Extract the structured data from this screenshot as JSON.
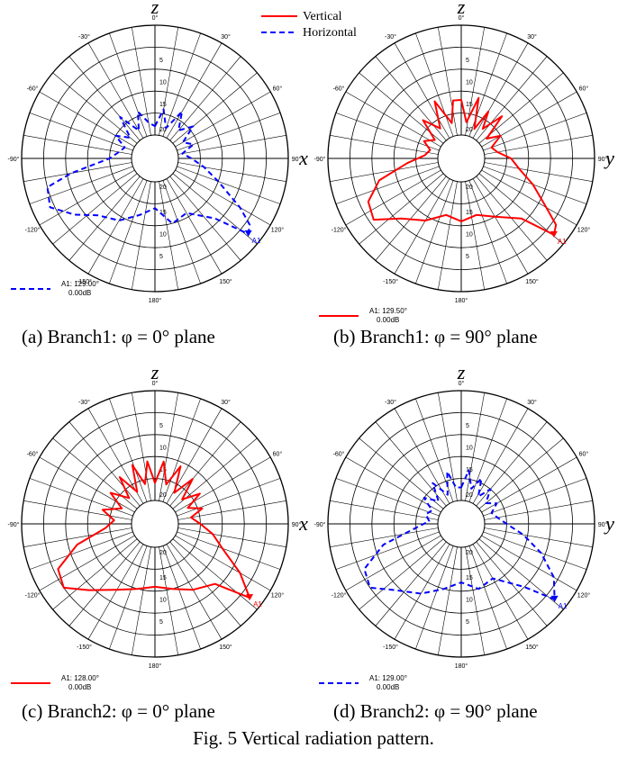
{
  "legend": {
    "vertical": {
      "label": "Vertical",
      "color": "#ff0000"
    },
    "horizontal": {
      "label": "Horizontal",
      "color": "#0000ff"
    }
  },
  "figure_caption": "Fig. 5 Vertical radiation pattern.",
  "chart_data": [
    {
      "type": "polar",
      "top_label": "z",
      "side_label": "x",
      "caption": "(a) Branch1: φ = 0° plane",
      "angle_ticks": [
        "0°",
        "30°",
        "60°",
        "90°",
        "120°",
        "150°",
        "180°",
        "-150°",
        "-120°",
        "-90°",
        "-60°",
        "-30°"
      ],
      "radial_ticks": [
        "20",
        "15",
        "10",
        "5"
      ],
      "series": [
        {
          "style": "dashed",
          "color": "#0000ff",
          "angles": [
            0,
            10,
            20,
            30,
            40,
            50,
            60,
            70,
            80,
            90,
            100,
            110,
            120,
            125,
            129,
            135,
            150,
            165,
            180,
            195,
            210,
            225,
            235,
            245,
            255,
            260,
            270,
            280,
            290,
            300,
            310,
            320,
            330,
            340,
            350
          ],
          "values": [
            2,
            6,
            2,
            7,
            3,
            6,
            2,
            4,
            1,
            3,
            6,
            10,
            17,
            21,
            22,
            14,
            9,
            10,
            6,
            8,
            11,
            13,
            17,
            21,
            20,
            14,
            5,
            3,
            2,
            5,
            2,
            7,
            2,
            6,
            3
          ]
        }
      ],
      "marker": {
        "label": "A1",
        "angle": 129,
        "readout": "A1:  129.00°",
        "level": "0.00dB"
      }
    },
    {
      "type": "polar",
      "top_label": "z",
      "side_label": "y",
      "caption": "(b) Branch1: φ = 90° plane",
      "angle_ticks": [
        "0°",
        "30°",
        "60°",
        "90°",
        "120°",
        "150°",
        "180°",
        "-150°",
        "-120°",
        "-90°",
        "-60°",
        "-30°"
      ],
      "radial_ticks": [
        "20",
        "15",
        "10",
        "5"
      ],
      "series": [
        {
          "style": "solid",
          "color": "#ff0000",
          "angles": [
            0,
            8,
            16,
            24,
            30,
            36,
            44,
            52,
            60,
            70,
            80,
            90,
            100,
            110,
            120,
            125,
            129.5,
            135,
            150,
            165,
            180,
            195,
            210,
            225,
            235,
            245,
            255,
            265,
            275,
            285,
            295,
            305,
            315,
            325,
            335,
            345,
            352
          ],
          "values": [
            8,
            3,
            9,
            2,
            7,
            3,
            8,
            2,
            5,
            2,
            3,
            6,
            8,
            12,
            17,
            21,
            22,
            14,
            10,
            8,
            9,
            8,
            11,
            14,
            19,
            18,
            14,
            7,
            3,
            2,
            4,
            2,
            7,
            3,
            9,
            3,
            8
          ]
        }
      ],
      "marker": {
        "label": "A1",
        "angle": 129.5,
        "readout": "A1:  129.50°",
        "level": "0.00dB"
      }
    },
    {
      "type": "polar",
      "top_label": "z",
      "side_label": "x",
      "caption": "(c) Branch2: φ = 0° plane",
      "angle_ticks": [
        "0°",
        "30°",
        "60°",
        "90°",
        "120°",
        "150°",
        "180°",
        "-150°",
        "-120°",
        "-90°",
        "-60°",
        "-30°"
      ],
      "radial_ticks": [
        "20",
        "15",
        "10",
        "5"
      ],
      "series": [
        {
          "style": "solid",
          "color": "#ff0000",
          "angles": [
            0,
            8,
            16,
            24,
            32,
            40,
            48,
            56,
            64,
            72,
            80,
            90,
            100,
            110,
            120,
            128,
            135,
            150,
            165,
            180,
            195,
            210,
            225,
            235,
            245,
            255,
            265,
            275,
            285,
            295,
            305,
            315,
            323,
            331,
            339,
            346,
            353
          ],
          "values": [
            4,
            9,
            4,
            9,
            3,
            8,
            3,
            7,
            3,
            6,
            3,
            5,
            8,
            11,
            17,
            22,
            14,
            12,
            10,
            9,
            10,
            12,
            16,
            20,
            19,
            13,
            6,
            4,
            7,
            3,
            7,
            3,
            8,
            3,
            9,
            4,
            9
          ]
        }
      ],
      "marker": {
        "label": "A1",
        "angle": 128,
        "readout": "A1:  128.00°",
        "level": "0.00dB"
      }
    },
    {
      "type": "polar",
      "top_label": "z",
      "side_label": "y",
      "caption": "(d) Branch2: φ = 90° plane",
      "angle_ticks": [
        "0°",
        "30°",
        "60°",
        "90°",
        "120°",
        "150°",
        "180°",
        "-150°",
        "-120°",
        "-90°",
        "-60°",
        "-30°"
      ],
      "radial_ticks": [
        "20",
        "15",
        "10",
        "5"
      ],
      "series": [
        {
          "style": "dashed",
          "color": "#0000ff",
          "angles": [
            0,
            8,
            16,
            24,
            32,
            40,
            50,
            60,
            70,
            80,
            90,
            100,
            110,
            120,
            129,
            135,
            150,
            165,
            180,
            195,
            210,
            225,
            235,
            245,
            255,
            265,
            275,
            285,
            295,
            305,
            315,
            325,
            335,
            345,
            352
          ],
          "values": [
            3,
            7,
            3,
            6,
            2,
            5,
            2,
            4,
            2,
            3,
            5,
            9,
            14,
            19,
            22,
            15,
            9,
            10,
            8,
            10,
            13,
            16,
            20,
            19,
            13,
            5,
            2,
            3,
            2,
            5,
            2,
            6,
            2,
            7,
            3
          ]
        }
      ],
      "marker": {
        "label": "A1",
        "angle": 129,
        "readout": "A1:  129.00°",
        "level": "0.00dB"
      }
    }
  ]
}
